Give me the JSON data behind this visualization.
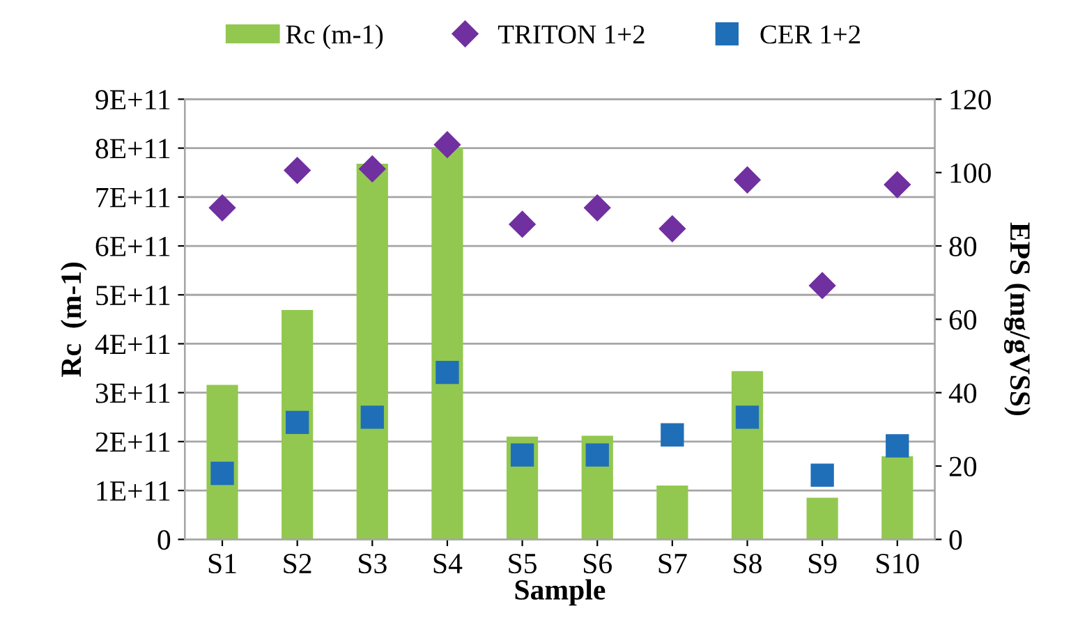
{
  "chart_data": {
    "type": "bar",
    "categories": [
      "S1",
      "S2",
      "S3",
      "S4",
      "S5",
      "S6",
      "S7",
      "S8",
      "S9",
      "S10"
    ],
    "xlabel": "Sample",
    "ylabel": "Rc  (m-1)",
    "y2label": "EPS (mg/gVSS)",
    "series": [
      {
        "name": "Rc (m-1)",
        "color": "#92c84f",
        "values": [
          316000000000,
          469000000000,
          768000000000,
          800000000000,
          210000000000,
          212000000000,
          110000000000,
          344000000000,
          85000000000,
          170000000000
        ]
      },
      {
        "name": "TRITON 1+2",
        "type": "scatter",
        "axis": "y2",
        "marker": "diamond",
        "color": "#7030a0",
        "values": [
          90.4,
          100.6,
          101,
          107.6,
          85.9,
          90.4,
          84.7,
          98,
          69.2,
          96.7
        ]
      },
      {
        "name": "CER 1+2",
        "type": "scatter",
        "axis": "y2",
        "marker": "square",
        "color": "#1f6fb8",
        "values": [
          18,
          31.9,
          33.3,
          45.5,
          23,
          23,
          28.5,
          33.3,
          17.5,
          25.5
        ]
      }
    ],
    "ylim": [
      0,
      900000000000
    ],
    "yticks": [
      0,
      {
        "value": 100000000000,
        "label": "1E+11"
      },
      {
        "value": 200000000000,
        "label": "2E+11"
      },
      {
        "value": 300000000000,
        "label": "3E+11"
      },
      {
        "value": 400000000000,
        "label": "4E+11"
      },
      {
        "value": 500000000000,
        "label": "5E+11"
      },
      {
        "value": 600000000000,
        "label": "6E+11"
      },
      {
        "value": 700000000000,
        "label": "7E+11"
      },
      {
        "value": 800000000000,
        "label": "8E+11"
      },
      {
        "value": 900000000000,
        "label": "9E+11"
      }
    ],
    "y2lim": [
      0,
      120
    ],
    "y2ticks": [
      0,
      20,
      40,
      60,
      80,
      100,
      120
    ],
    "grid": "y",
    "legend": "top"
  }
}
